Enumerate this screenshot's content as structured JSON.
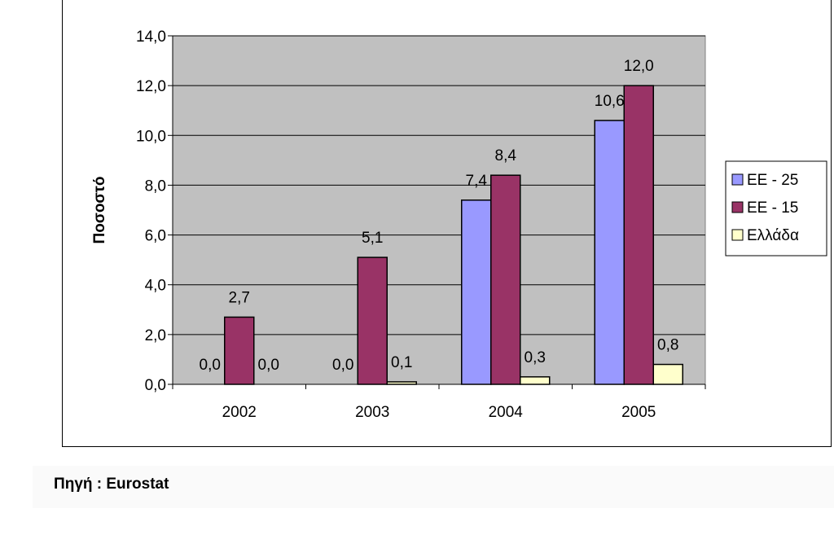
{
  "source_note": "Πηγή : Eurostat",
  "chart_data": {
    "type": "bar",
    "title": "",
    "xlabel": "",
    "ylabel": "Ποσοστό",
    "ylim": [
      0,
      14
    ],
    "ytick_step": 2,
    "ytick_labels": [
      "0,0",
      "2,0",
      "4,0",
      "6,0",
      "8,0",
      "10,0",
      "12,0",
      "14,0"
    ],
    "categories": [
      "2002",
      "2003",
      "2004",
      "2005"
    ],
    "grid": true,
    "legend_position": "right",
    "series": [
      {
        "name": "ΕΕ - 25",
        "color": "#9999ff",
        "values": [
          0.0,
          0.0,
          7.4,
          10.6
        ],
        "labels": [
          "0,0",
          "0,0",
          "7,4",
          "10,6"
        ]
      },
      {
        "name": "ΕΕ - 15",
        "color": "#993366",
        "values": [
          2.7,
          5.1,
          8.4,
          12.0
        ],
        "labels": [
          "2,7",
          "5,1",
          "8,4",
          "12,0"
        ]
      },
      {
        "name": "Ελλάδα",
        "color": "#ffffcc",
        "values": [
          0.0,
          0.1,
          0.3,
          0.8
        ],
        "labels": [
          "0,0",
          "0,1",
          "0,3",
          "0,8"
        ]
      }
    ],
    "plot_background": "#c0c0c0"
  }
}
